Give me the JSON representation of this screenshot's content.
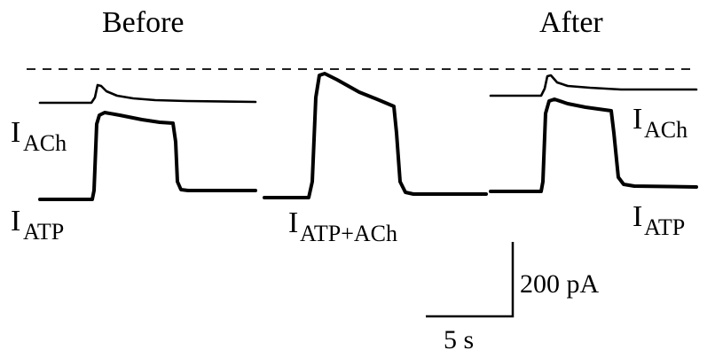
{
  "headings": {
    "before": "Before",
    "after": "After"
  },
  "trace_labels": {
    "ach_before": {
      "main": "I",
      "sub": "ACh"
    },
    "atp_before": {
      "main": "I",
      "sub": "ATP"
    },
    "atp_plus_ach": {
      "main": "I",
      "sub": "ATP+ACh"
    },
    "ach_after": {
      "main": "I",
      "sub": "ACh"
    },
    "atp_after": {
      "main": "I",
      "sub": "ATP"
    }
  },
  "scale_bar": {
    "current": "200 pA",
    "time": "5 s"
  },
  "colors": {
    "trace": "#000000",
    "background": "#ffffff"
  }
}
